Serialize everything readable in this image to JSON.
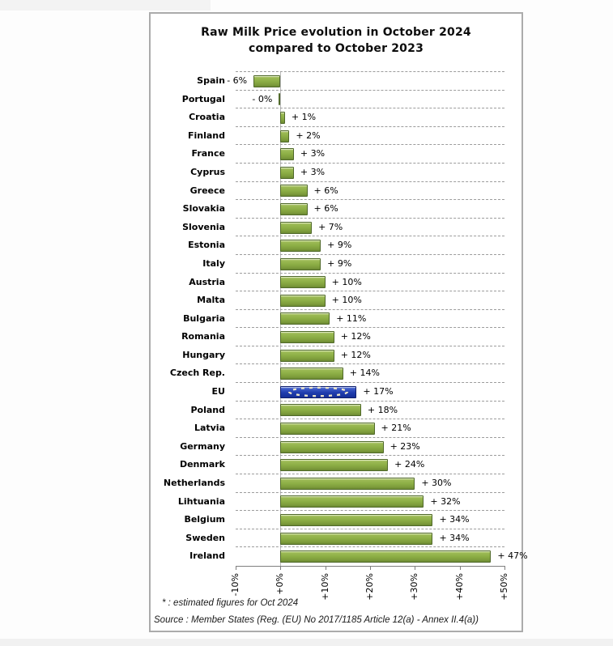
{
  "chart_data": {
    "type": "bar",
    "orientation": "horizontal",
    "title_line1": "Raw Milk Price evolution in October 2024",
    "title_line2": "compared to October 2023",
    "categories": [
      "Spain",
      "Portugal",
      "Croatia",
      "Finland",
      "France",
      "Cyprus",
      "Greece",
      "Slovakia",
      "Slovenia",
      "Estonia",
      "Italy",
      "Austria",
      "Malta",
      "Bulgaria",
      "Romania",
      "Hungary",
      "Czech Rep.",
      "EU",
      "Poland",
      "Latvia",
      "Germany",
      "Denmark",
      "Netherlands",
      "Lihtuania",
      "Belgium",
      "Sweden",
      "Ireland"
    ],
    "values": [
      -6,
      0,
      1,
      2,
      3,
      3,
      6,
      6,
      7,
      9,
      9,
      10,
      10,
      11,
      12,
      12,
      14,
      17,
      18,
      21,
      23,
      24,
      30,
      32,
      34,
      34,
      47
    ],
    "value_labels": [
      "- 6%",
      "- 0%",
      "+ 1%",
      "+ 2%",
      "+ 3%",
      "+ 3%",
      "+ 6%",
      "+ 6%",
      "+ 7%",
      "+ 9%",
      "+ 9%",
      "+ 10%",
      "+ 10%",
      "+ 11%",
      "+ 12%",
      "+ 12%",
      "+ 14%",
      "+ 17%",
      "+ 18%",
      "+ 21%",
      "+ 23%",
      "+ 24%",
      "+ 30%",
      "+ 32%",
      "+ 34%",
      "+ 34%",
      "+ 47%"
    ],
    "highlight_category": "EU",
    "highlight_icon": "eu-flag-stars",
    "xlim": [
      -10,
      50
    ],
    "x_tick_values": [
      -10,
      0,
      10,
      20,
      30,
      40,
      50
    ],
    "x_tick_labels": [
      "-10%",
      "+0%",
      "+10%",
      "+20%",
      "+30%",
      "+40%",
      "+50%"
    ],
    "bar_color": "#8cae45",
    "highlight_bar_color": "#1f3cae",
    "grid": "horizontal-dashed",
    "legend": "none"
  },
  "footnotes": {
    "estimate_note": "* : estimated figures for Oct 2024",
    "source_note": "Source : Member States (Reg. (EU) No 2017/1185 Article 12(a) - Annex II.4(a))"
  }
}
